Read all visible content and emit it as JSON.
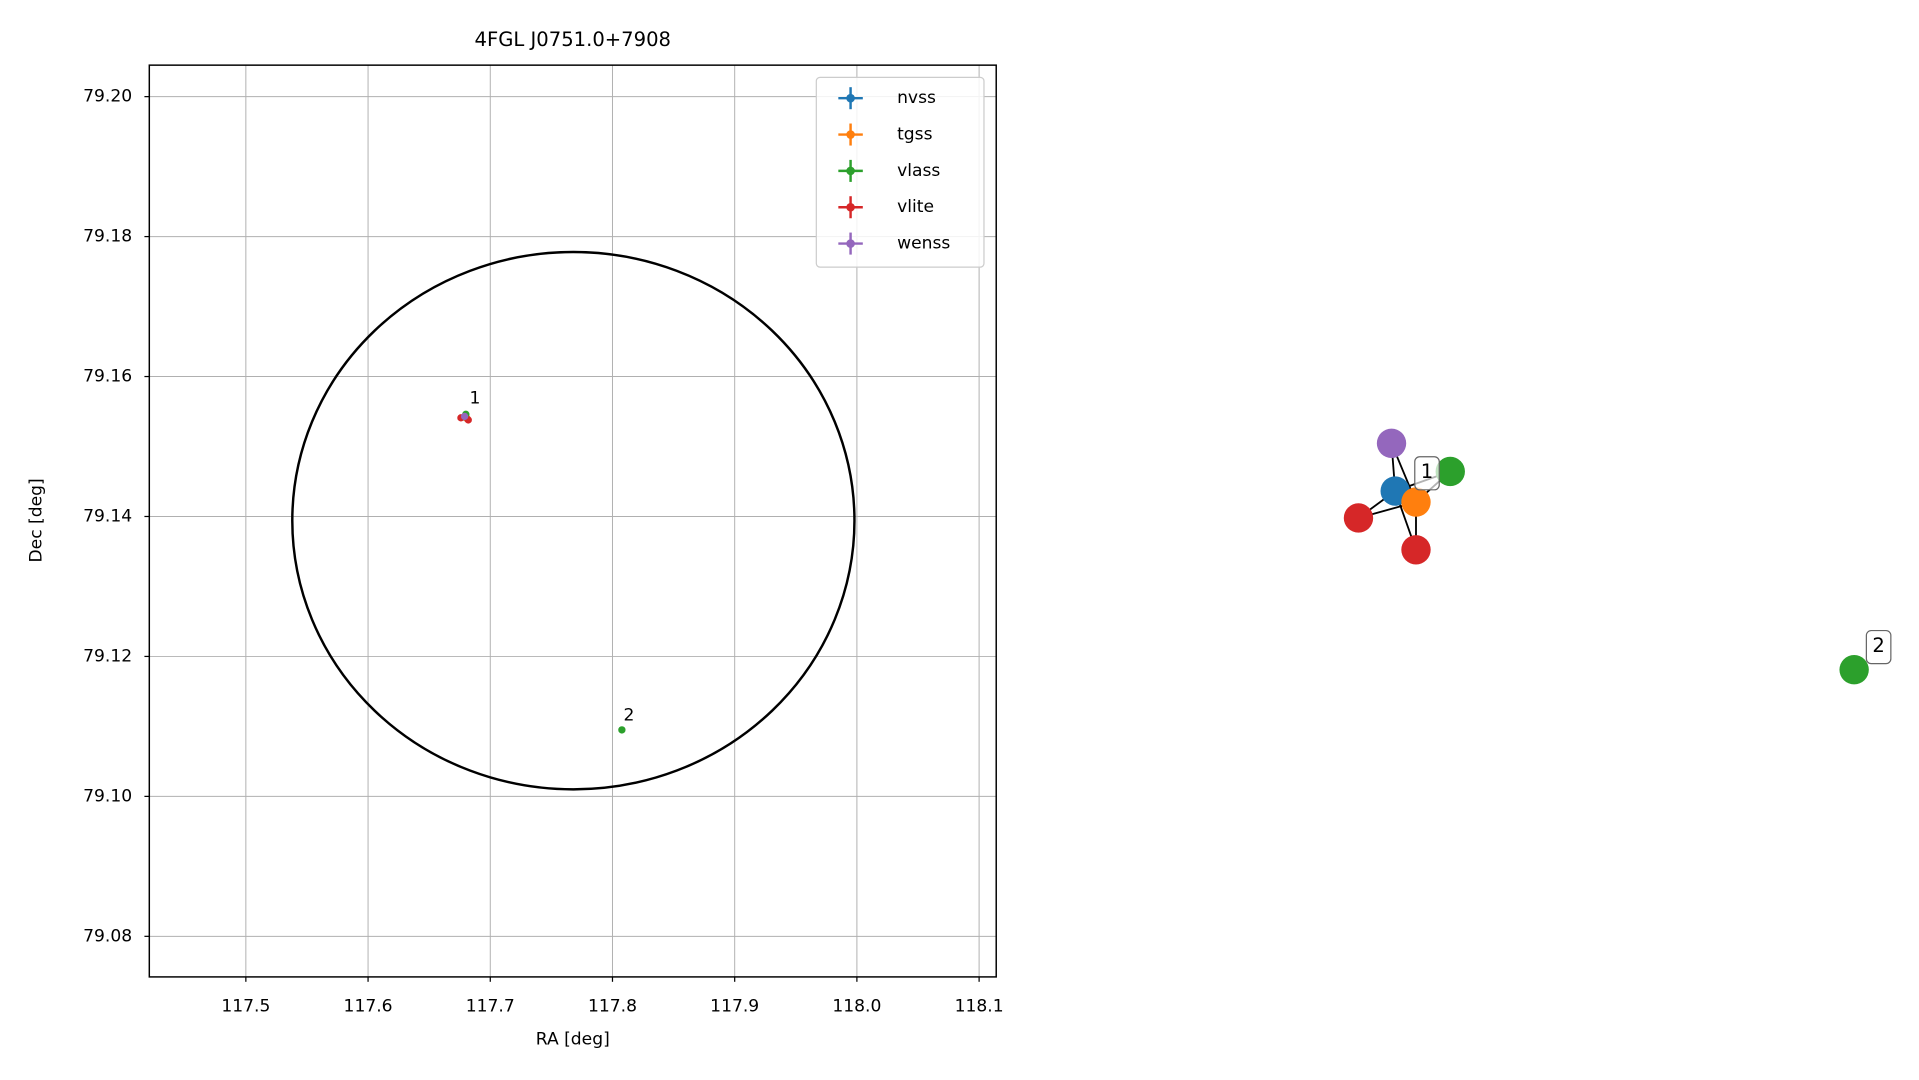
{
  "chart_data": [
    {
      "type": "scatter",
      "title": "4FGL J0751.0+7908",
      "x_label": "RA [deg]",
      "y_label": "Dec [deg]",
      "xlim": [
        117.421,
        118.114
      ],
      "ylim": [
        79.0742,
        79.2045
      ],
      "xticks": [
        117.5,
        117.6,
        117.7,
        117.8,
        117.9,
        {
          "value": 118,
          "label": "118.0"
        },
        118.1
      ],
      "yticks": [
        79.08,
        {
          "value": 79.1,
          "label": "79.10"
        },
        79.12,
        79.14,
        79.16,
        79.18,
        {
          "value": 79.2,
          "label": "79.20"
        }
      ],
      "grid": true,
      "legend": "upper right",
      "region": {
        "x": 117.768,
        "y": 79.1394,
        "rx": 0.23,
        "ry": 0.0384,
        "color": "#000000"
      },
      "series": [
        {
          "name": "nvss",
          "color": "#1f77b4",
          "x": [
            117.68
          ],
          "values": [
            79.1541
          ]
        },
        {
          "name": "tgss",
          "color": "#ff7f0e",
          "x": [
            117.681
          ],
          "values": [
            79.154
          ]
        },
        {
          "name": "vlass",
          "color": "#2ca02c",
          "x": [
            117.68,
            117.8077
          ],
          "values": [
            79.1546,
            79.1095
          ]
        },
        {
          "name": "vlite",
          "color": "#d62728",
          "x": [
            117.676,
            117.682
          ],
          "values": [
            79.1541,
            79.1538
          ]
        },
        {
          "name": "wenss",
          "color": "#9467bd",
          "x": [
            117.679
          ],
          "values": [
            79.1543
          ]
        }
      ],
      "annotations": [
        {
          "text": "1",
          "x": 117.683,
          "y": 79.1565
        },
        {
          "text": "2",
          "x": 117.809,
          "y": 79.1112
        }
      ]
    },
    {
      "type": "network",
      "nodes": [
        {
          "color": "#1f77b4"
        },
        {
          "color": "#ff7f0e"
        },
        {
          "color": "#2ca02c"
        },
        {
          "color": "#9467bd"
        },
        {
          "color": "#d62728"
        },
        {
          "color": "#d62728"
        },
        {
          "color": "#2ca02c"
        }
      ],
      "edges": [
        [
          3,
          0
        ],
        [
          3,
          1
        ],
        [
          4,
          0
        ],
        [
          4,
          1
        ],
        [
          5,
          0
        ],
        [
          5,
          1
        ],
        [
          0,
          1
        ],
        [
          0,
          2
        ],
        [
          1,
          2
        ]
      ],
      "groups": [
        "1",
        "2"
      ]
    }
  ]
}
